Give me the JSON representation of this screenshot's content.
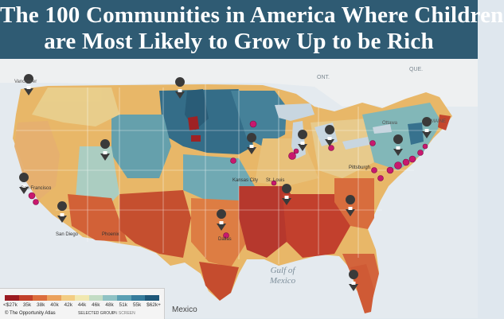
{
  "title": {
    "line1": "The 100 Communities in America Where Children",
    "line2": "are Most Likely to Grow Up to be Rich"
  },
  "legend": {
    "ticks": [
      "<$27k",
      "35k",
      "38k",
      "40k",
      "42k",
      "44k",
      "46k",
      "48k",
      "51k",
      "55k",
      "$62k+"
    ],
    "colors": [
      "#9b1b21",
      "#c2402a",
      "#dc6d3c",
      "#eba15c",
      "#f3cd83",
      "#f1e8b0",
      "#c3dcc4",
      "#8fc2c4",
      "#5a9fb3",
      "#367c9c",
      "#1e5778"
    ],
    "source": "© The Opportunity Atlas",
    "selected_group": "SELECTED GROUP",
    "on_screen": "ON SCREEN"
  },
  "labels": {
    "gulf": "Gulf of Mexico",
    "mexico": "Mexico",
    "ont": "ONT.",
    "que": "QUE.",
    "ottawa": "Ottawa",
    "maine": "MAINE",
    "vancouver": "Vancouver"
  },
  "cities": {
    "san_francisco": "San Francisco",
    "san_diego": "San Diego",
    "phoenix": "Phoenix",
    "dallas": "Dallas",
    "kansas_city": "Kansas City",
    "st_louis": "St. Louis",
    "pittsburgh": "Pittsburgh"
  },
  "pins": [
    "pin-seattle",
    "pin-sf",
    "pin-la",
    "pin-phoenix",
    "pin-denver",
    "pin-dallas",
    "pin-kc",
    "pin-chicago",
    "pin-detroit",
    "pin-atlanta",
    "pin-nyc",
    "pin-boston",
    "pin-miami",
    "pin-dc"
  ]
}
